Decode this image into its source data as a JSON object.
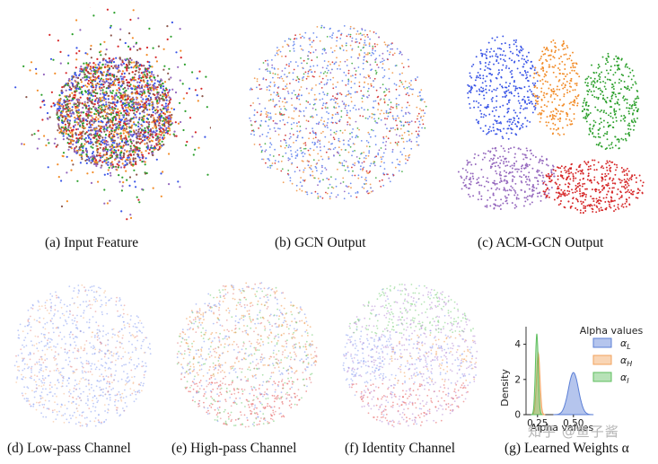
{
  "panels": {
    "a": {
      "caption": "(a)  Input Feature"
    },
    "b": {
      "caption": "(b) GCN Output"
    },
    "c": {
      "caption": "(c) ACM-GCN Output"
    },
    "d": {
      "caption": "(d) Low-pass Channel"
    },
    "e": {
      "caption": "(e) High-pass Channel"
    },
    "f": {
      "caption": "(f) Identity Channel"
    },
    "g": {
      "caption": "(g) Learned Weights α"
    }
  },
  "class_colors": [
    "#3a55e6",
    "#f28c28",
    "#2ca02c",
    "#d62728",
    "#9467bd",
    "#8c564b"
  ],
  "chart_data": {
    "type": "area",
    "xlabel": "Alpha values",
    "ylabel": "Density",
    "xticks": [
      "0.25",
      "0.50"
    ],
    "yticks": [
      "0",
      "2",
      "4"
    ],
    "xlim": [
      0.17,
      0.62
    ],
    "ylim": [
      0,
      5
    ],
    "legend_title": "Alpha values",
    "legend_placement": "top-right",
    "series": [
      {
        "name": "αL",
        "sub": "L",
        "color": "#5b7fd6",
        "peak_x": 0.5,
        "peak_y": 2.4,
        "width": 0.035
      },
      {
        "name": "αH",
        "sub": "H",
        "color": "#f2a25c",
        "peak_x": 0.255,
        "peak_y": 3.5,
        "width": 0.012
      },
      {
        "name": "αI",
        "sub": "I",
        "color": "#5fbf5f",
        "peak_x": 0.245,
        "peak_y": 4.6,
        "width": 0.01
      }
    ]
  },
  "watermark": "知乎 @鱼子酱"
}
